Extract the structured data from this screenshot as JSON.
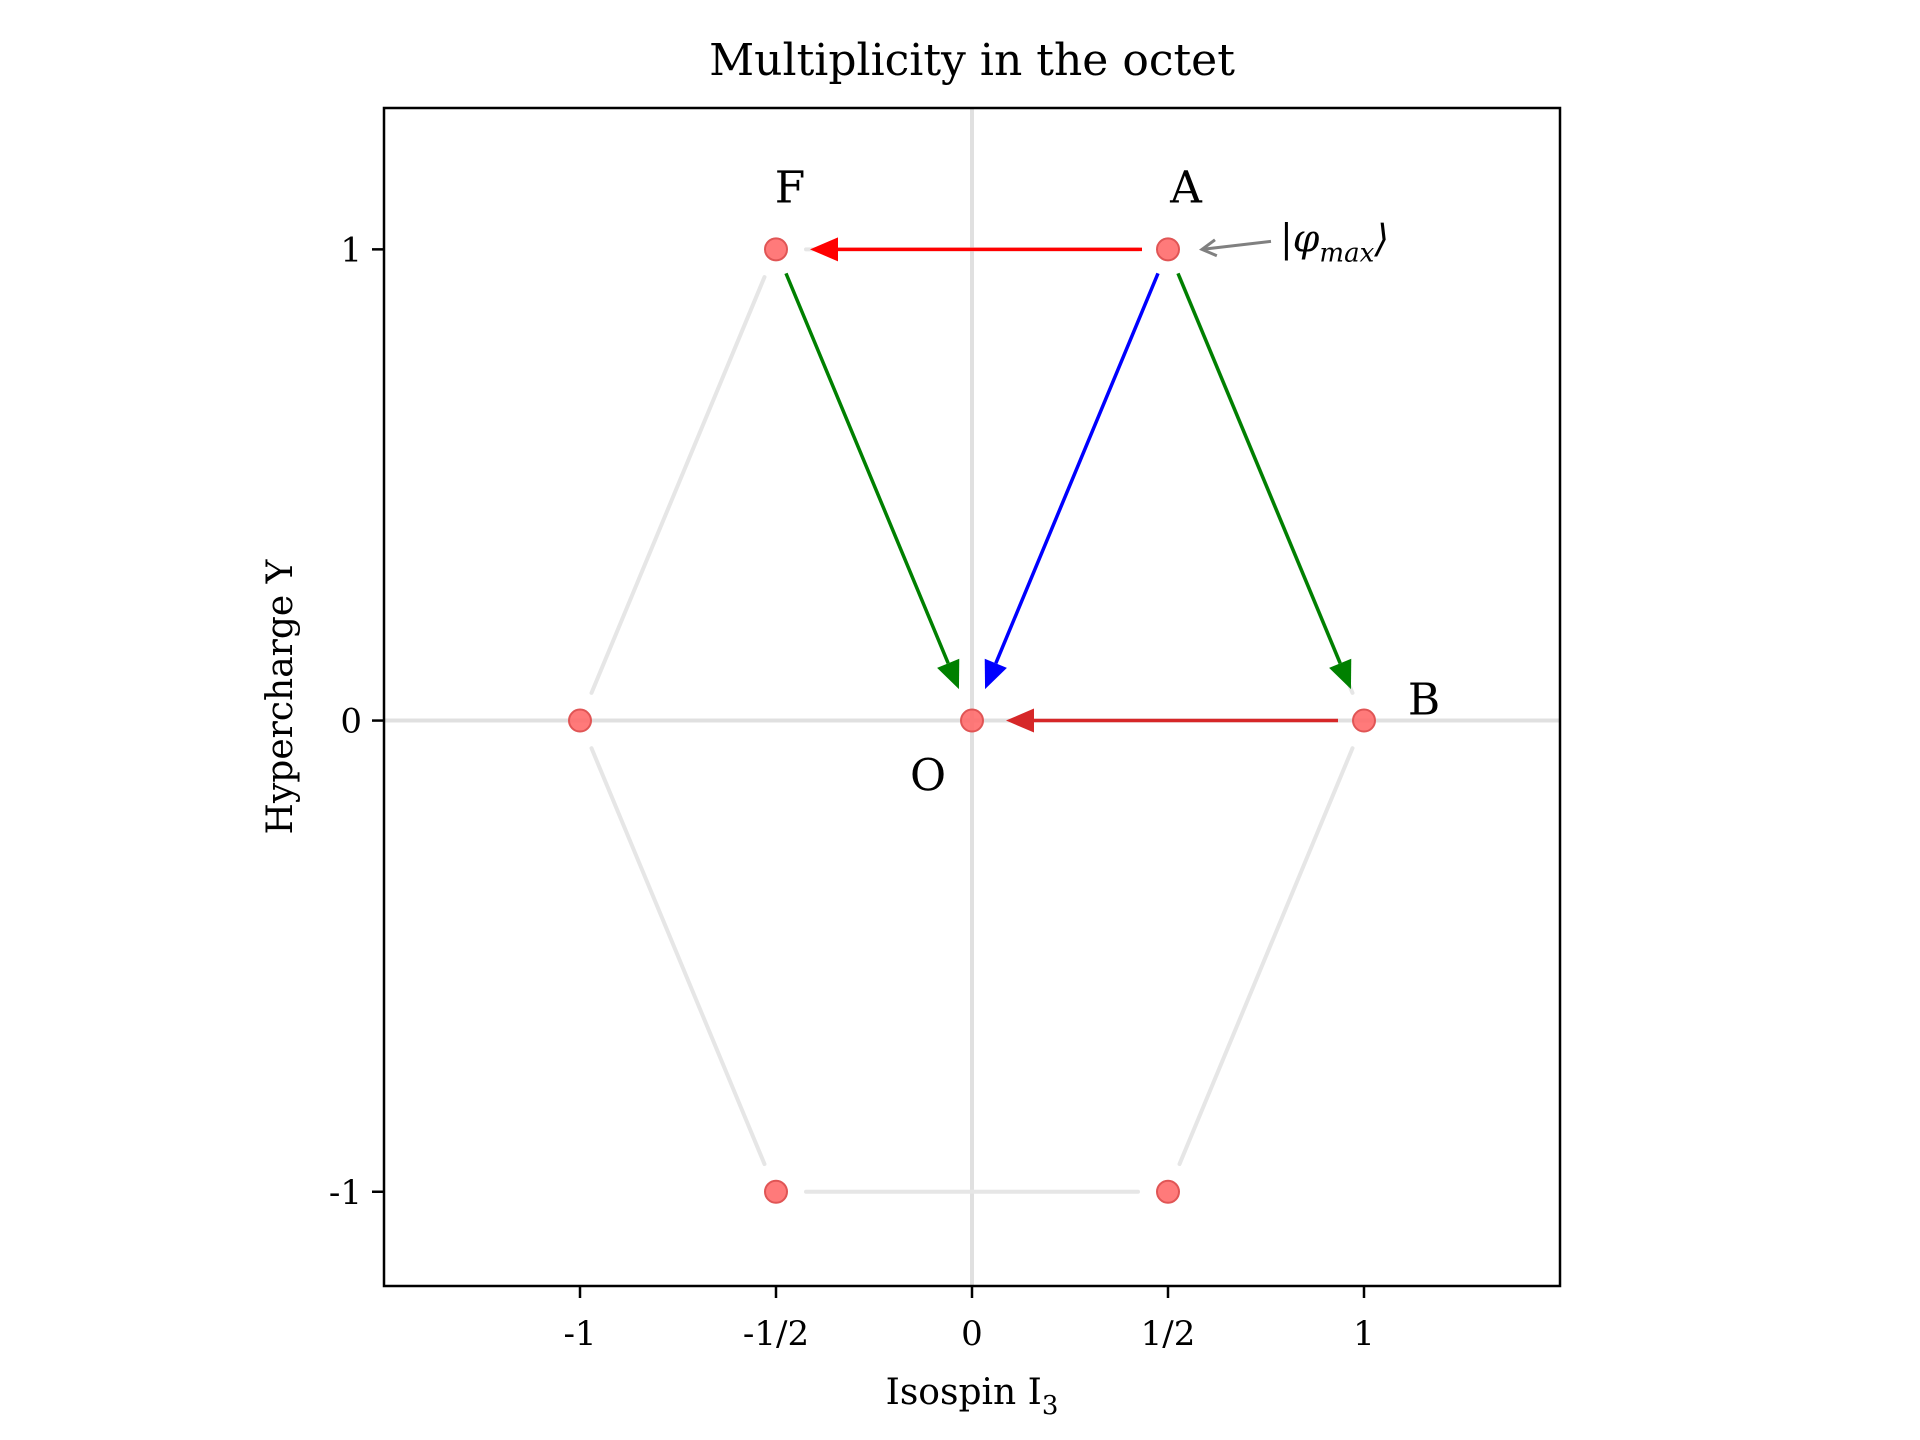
{
  "chart_data": {
    "type": "scatter",
    "title": "Multiplicity in the octet",
    "xlabel": "Isospin I",
    "xlabel_sub": "3",
    "ylabel": "Hypercharge Y",
    "xlim": [
      -1.5,
      1.5
    ],
    "ylim": [
      -1.2,
      1.3
    ],
    "x_ticks": [
      {
        "value": -1,
        "label": "-1"
      },
      {
        "value": -0.5,
        "label": "-1/2"
      },
      {
        "value": 0,
        "label": "0"
      },
      {
        "value": 0.5,
        "label": "1/2"
      },
      {
        "value": 1,
        "label": "1"
      }
    ],
    "y_ticks": [
      {
        "value": -1,
        "label": "-1"
      },
      {
        "value": 0,
        "label": "0"
      },
      {
        "value": 1,
        "label": "1"
      }
    ],
    "grid": false,
    "reference_lines": {
      "x": 0,
      "y": 0,
      "color": "#e0e0e0"
    },
    "points": [
      {
        "x": -0.5,
        "y": 1,
        "label": "F"
      },
      {
        "x": 0.5,
        "y": 1,
        "label": "A"
      },
      {
        "x": 1,
        "y": 0,
        "label": "B"
      },
      {
        "x": 0.5,
        "y": -1,
        "label": ""
      },
      {
        "x": -0.5,
        "y": -1,
        "label": ""
      },
      {
        "x": -1,
        "y": 0,
        "label": ""
      },
      {
        "x": 0,
        "y": 0,
        "label": "O"
      }
    ],
    "point_color": "#ff6b6b",
    "hexagon_color": "#e6e6e6",
    "arrows": [
      {
        "from": [
          0.5,
          1
        ],
        "to": [
          -0.5,
          1
        ],
        "color": "#ff0000"
      },
      {
        "from": [
          1,
          0
        ],
        "to": [
          0,
          0
        ],
        "color": "#d62728"
      },
      {
        "from": [
          0.5,
          1
        ],
        "to": [
          1,
          0
        ],
        "color": "#008000"
      },
      {
        "from": [
          -0.5,
          1
        ],
        "to": [
          0,
          0
        ],
        "color": "#008000"
      },
      {
        "from": [
          0.5,
          1
        ],
        "to": [
          0,
          0
        ],
        "color": "#0000ff"
      }
    ],
    "annotation": {
      "text": "|φmax⟩",
      "main": "|φ",
      "sub": "max",
      "close": "⟩",
      "points_to": [
        0.5,
        1
      ],
      "color": "#808080"
    }
  }
}
